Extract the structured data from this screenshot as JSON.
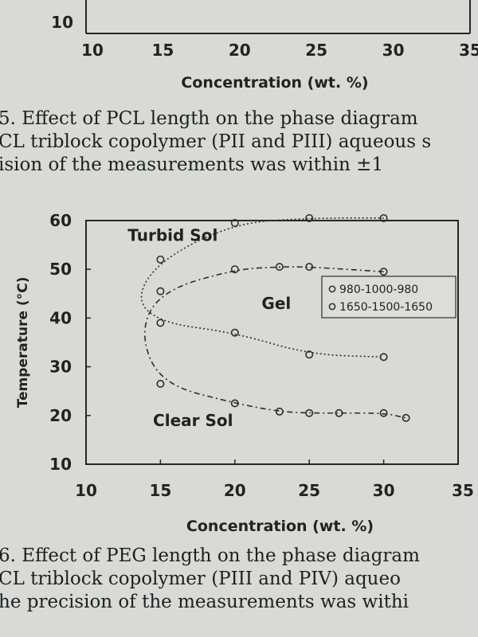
{
  "top_chart": {
    "y_tick_visible": "10",
    "x_ticks": [
      "10",
      "15",
      "20",
      "25",
      "30",
      "35"
    ],
    "xlabel": "Concentration (wt. %)"
  },
  "caption_top": {
    "lines": [
      "5. Effect of PCL length on the phase diagram",
      "CL triblock copolymer (PII and PIII) aqueous s",
      "ision of the measurements was within ±1 "
    ]
  },
  "caption_bottom": {
    "lines": [
      "6. Effect of PEG length on the phase diagram",
      "CL triblock copolymer (PIII and PIV) aqueo",
      "he precision of the measurements was withi"
    ]
  },
  "chart_data": {
    "type": "scatter",
    "xlabel": "Concentration (wt. %)",
    "ylabel": "Temperature (°C)",
    "xlim": [
      10,
      35
    ],
    "ylim": [
      10,
      60
    ],
    "x_ticks": [
      10,
      15,
      20,
      25,
      30,
      35
    ],
    "y_ticks": [
      10,
      20,
      30,
      40,
      50,
      60
    ],
    "grid": false,
    "legend_position": "right",
    "region_labels": [
      {
        "text": "Turbid Sol",
        "x": 12.8,
        "y": 57
      },
      {
        "text": "Gel",
        "x": 21.8,
        "y": 43
      },
      {
        "text": "Clear Sol",
        "x": 14.5,
        "y": 19
      }
    ],
    "series": [
      {
        "name": "980-1000-980",
        "marker": "circle",
        "line": "dashed",
        "upper": {
          "x": [
            15,
            20,
            23,
            25,
            30
          ],
          "y": [
            45.5,
            50,
            50.5,
            50.5,
            49.5
          ]
        },
        "lower": {
          "x": [
            15,
            20,
            23,
            25,
            27,
            30,
            31.5
          ],
          "y": [
            26.5,
            22.5,
            20.8,
            20.5,
            20.5,
            20.5,
            19.5
          ]
        }
      },
      {
        "name": "1650-1500-1650",
        "marker": "circle",
        "line": "dotted",
        "upper": {
          "x": [
            15,
            20,
            25,
            30
          ],
          "y": [
            52,
            59.5,
            60.5,
            60.5
          ]
        },
        "lower": {
          "x": [
            15,
            20,
            25,
            30
          ],
          "y": [
            39,
            37,
            32.5,
            32
          ]
        }
      }
    ]
  }
}
